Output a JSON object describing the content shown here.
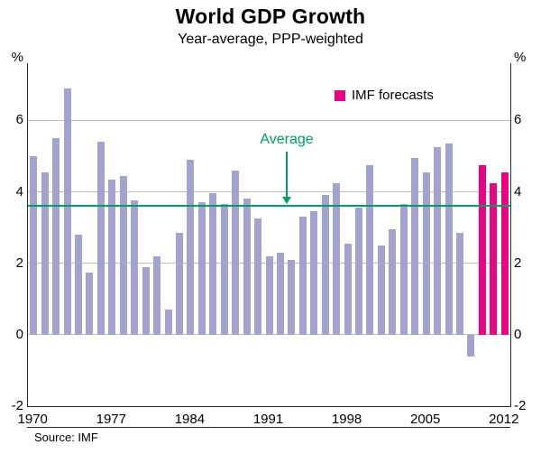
{
  "chart_data": {
    "type": "bar",
    "title": "World GDP Growth",
    "subtitle": "Year-average, PPP-weighted",
    "axis_unit_left": "%",
    "axis_unit_right": "%",
    "years": [
      1970,
      1971,
      1972,
      1973,
      1974,
      1975,
      1976,
      1977,
      1978,
      1979,
      1980,
      1981,
      1982,
      1983,
      1984,
      1985,
      1986,
      1987,
      1988,
      1989,
      1990,
      1991,
      1992,
      1993,
      1994,
      1995,
      1996,
      1997,
      1998,
      1999,
      2000,
      2001,
      2002,
      2003,
      2004,
      2005,
      2006,
      2007,
      2008,
      2009,
      2010,
      2011,
      2012
    ],
    "values": [
      5.0,
      4.55,
      5.5,
      6.9,
      2.8,
      1.75,
      5.4,
      4.35,
      4.45,
      3.75,
      1.9,
      2.2,
      0.7,
      2.85,
      4.9,
      3.7,
      3.95,
      3.65,
      4.6,
      3.8,
      3.25,
      2.2,
      2.3,
      2.1,
      3.3,
      3.45,
      3.9,
      4.25,
      2.55,
      3.55,
      4.75,
      2.5,
      2.95,
      3.65,
      4.95,
      4.55,
      5.25,
      5.35,
      2.85,
      -0.6,
      4.75,
      4.25,
      4.55
    ],
    "forecast_years": [
      2010,
      2011,
      2012
    ],
    "average": 3.6,
    "average_label": "Average",
    "legend": {
      "label": "IMF forecasts"
    },
    "yticks": [
      6,
      4,
      2,
      0,
      -2
    ],
    "gridlines": [
      0,
      2,
      4,
      6
    ],
    "xticks": [
      1970,
      1977,
      1984,
      1991,
      1998,
      2005,
      2012
    ],
    "ylim": [
      -2,
      7.6
    ],
    "colors": {
      "bar": "#a3a4ce",
      "forecast": "#e6067f",
      "average_line": "#009e60",
      "average_text": "#009e60",
      "grid": "#bdbdbd",
      "frame": "#2b2b2b"
    },
    "source": "Source: IMF"
  }
}
